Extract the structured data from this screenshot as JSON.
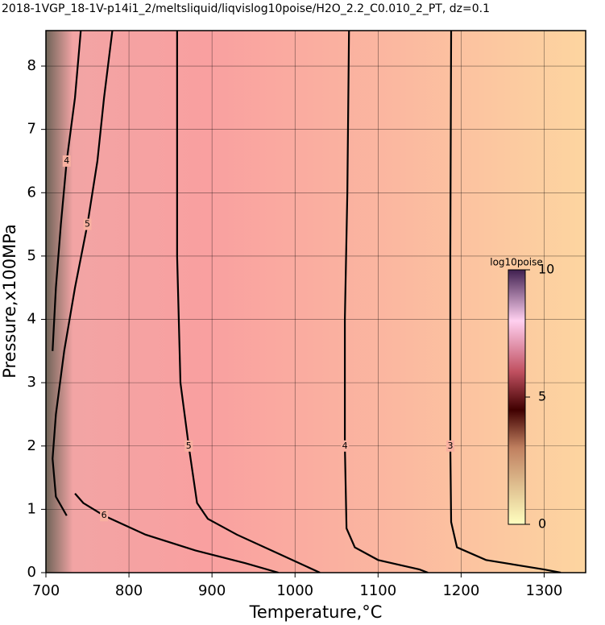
{
  "chart_data": {
    "type": "contour",
    "title": "2018-1VGP_18-1V-p14i1_2/meltsliquid/liqvislog10poise/H2O_2.2_C0.010_2_PT, dz=0.1",
    "xlabel": "Temperature,°C",
    "ylabel": "Pressure,x100MPa",
    "xlim": [
      700,
      1350
    ],
    "ylim": [
      0,
      8.56
    ],
    "xticks": [
      700,
      800,
      900,
      1000,
      1100,
      1200,
      1300
    ],
    "yticks": [
      0,
      1,
      2,
      3,
      4,
      5,
      6,
      7,
      8
    ],
    "grid": true,
    "contours": [
      {
        "level": 3,
        "x": [
          1188,
          1187,
          1187,
          1188,
          1195,
          1230,
          1300,
          1320
        ],
        "y": [
          8.56,
          5,
          2,
          0.8,
          0.4,
          0.2,
          0.05,
          0
        ]
      },
      {
        "level": 4,
        "x": [
          1065,
          1063,
          1060,
          1060,
          1062,
          1072,
          1100,
          1150,
          1160
        ],
        "y": [
          8.56,
          6,
          4,
          2,
          0.7,
          0.4,
          0.2,
          0.05,
          0
        ]
      },
      {
        "level": 5,
        "x": [
          858,
          858,
          862,
          872,
          882,
          895,
          930,
          980,
          1030
        ],
        "y": [
          8.56,
          5,
          3,
          2,
          1.1,
          0.85,
          0.6,
          0.3,
          0
        ]
      },
      {
        "level": 5,
        "x": [
          780,
          770,
          762,
          750,
          735,
          722,
          712,
          708,
          712,
          725
        ],
        "y": [
          8.56,
          7.5,
          6.5,
          5.5,
          4.5,
          3.5,
          2.5,
          1.8,
          1.2,
          0.9
        ]
      },
      {
        "level": 6,
        "x": [
          735,
          745,
          770,
          820,
          880,
          940,
          980
        ],
        "y": [
          1.25,
          1.1,
          0.9,
          0.6,
          0.35,
          0.15,
          0
        ]
      },
      {
        "level": 4,
        "x": [
          742,
          735,
          725,
          718,
          712,
          708
        ],
        "y": [
          8.56,
          7.5,
          6.5,
          5.5,
          4.5,
          3.5
        ]
      }
    ],
    "colorbar": {
      "label": "log10poise",
      "lim": [
        0,
        10
      ],
      "ticks": [
        0,
        5,
        10
      ]
    }
  }
}
